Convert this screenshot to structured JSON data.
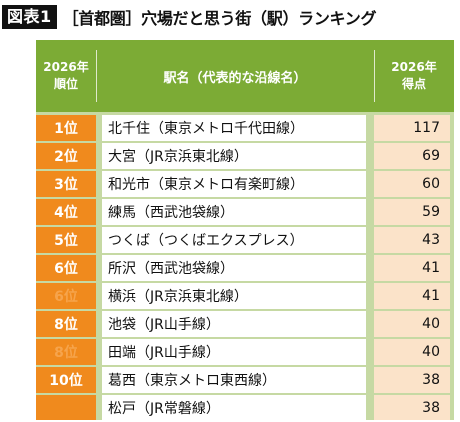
{
  "header": {
    "figure_label": "図表1",
    "title": "［首都圏］穴場だと思う街（駅）ランキング"
  },
  "table": {
    "columns": {
      "rank_year": "2026年",
      "rank_label": "順位",
      "station": "駅名（代表的な沿線名）",
      "score_year": "2026年",
      "score_label": "得点"
    },
    "rows": [
      {
        "rank": "1位",
        "station": "北千住（東京メトロ千代田線）",
        "score": "117"
      },
      {
        "rank": "2位",
        "station": "大宮（JR京浜東北線）",
        "score": "69"
      },
      {
        "rank": "3位",
        "station": "和光市（東京メトロ有楽町線）",
        "score": "60"
      },
      {
        "rank": "4位",
        "station": "練馬（西武池袋線）",
        "score": "59"
      },
      {
        "rank": "5位",
        "station": "つくば（つくばエクスプレス）",
        "score": "43"
      },
      {
        "rank": "6位",
        "station": "所沢（西武池袋線）",
        "score": "41"
      },
      {
        "rank": "6位",
        "station": "横浜（JR京浜東北線）",
        "score": "41"
      },
      {
        "rank": "8位",
        "station": "池袋（JR山手線）",
        "score": "40"
      },
      {
        "rank": "8位",
        "station": "田端（JR山手線）",
        "score": "40"
      },
      {
        "rank": "10位",
        "station": "葛西（東京メトロ東西線）",
        "score": "38"
      },
      {
        "rank": "",
        "station": "松戸（JR常磐線）",
        "score": "38"
      }
    ]
  },
  "colors": {
    "header_green": "#7cab35",
    "rank_orange": "#f08a1d",
    "score_peach": "#fbe3c9",
    "grid_green": "#c6d9a3"
  }
}
